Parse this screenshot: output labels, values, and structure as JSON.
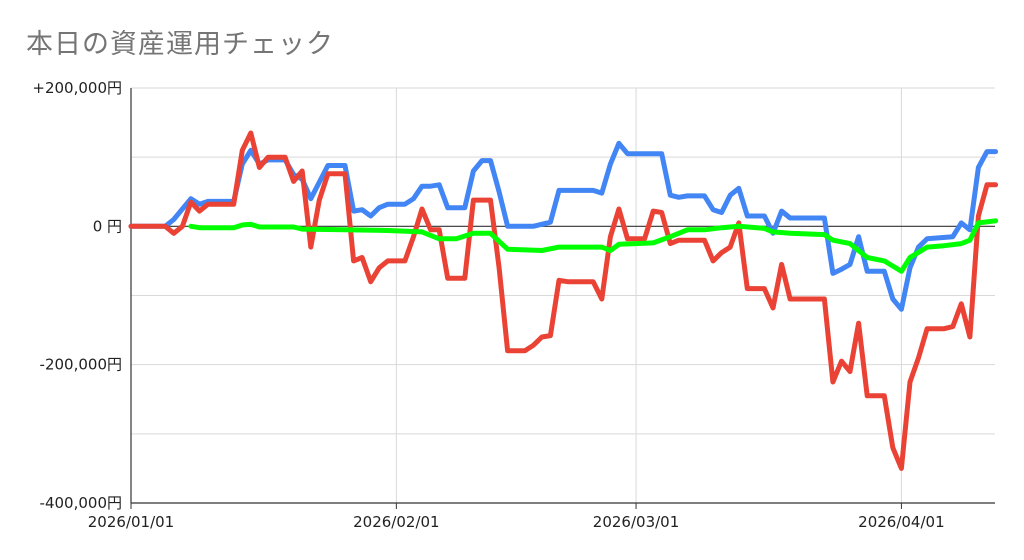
{
  "title": "本日の資産運用チェック",
  "chart_data": {
    "type": "line",
    "title": "本日の資産運用チェック",
    "xlabel": "",
    "ylabel": "",
    "x_ticks": [
      "2026/01/01",
      "2026/02/01",
      "2026/03/01",
      "2026/04/01"
    ],
    "y_ticks": [
      "+200,000円",
      "0 円",
      "-200,000円",
      "-400,000円"
    ],
    "y_tick_values": [
      200000,
      0,
      -200000,
      -400000
    ],
    "xlim": [
      "2026-01-01",
      "2026-04-11"
    ],
    "ylim": [
      -400000,
      200000
    ],
    "grid": true,
    "legend": "none",
    "series": [
      {
        "color": "#4285f4",
        "points": [
          [
            "2026-01-01",
            0
          ],
          [
            "2026-01-05",
            0
          ],
          [
            "2026-01-06",
            10000
          ],
          [
            "2026-01-08",
            40000
          ],
          [
            "2026-01-09",
            32000
          ],
          [
            "2026-01-10",
            36000
          ],
          [
            "2026-01-13",
            36000
          ],
          [
            "2026-01-14",
            90000
          ],
          [
            "2026-01-15",
            110000
          ],
          [
            "2026-01-16",
            90000
          ],
          [
            "2026-01-17",
            96000
          ],
          [
            "2026-01-19",
            96000
          ],
          [
            "2026-01-20",
            75000
          ],
          [
            "2026-01-21",
            68000
          ],
          [
            "2026-01-22",
            40000
          ],
          [
            "2026-01-24",
            88000
          ],
          [
            "2026-01-26",
            88000
          ],
          [
            "2026-01-27",
            22000
          ],
          [
            "2026-01-28",
            24000
          ],
          [
            "2026-01-29",
            15000
          ],
          [
            "2026-01-30",
            27000
          ],
          [
            "2026-01-31",
            32000
          ],
          [
            "2026-02-02",
            32000
          ],
          [
            "2026-02-03",
            40000
          ],
          [
            "2026-02-04",
            58000
          ],
          [
            "2026-02-05",
            58000
          ],
          [
            "2026-02-06",
            60000
          ],
          [
            "2026-02-07",
            27000
          ],
          [
            "2026-02-09",
            27000
          ],
          [
            "2026-02-10",
            80000
          ],
          [
            "2026-02-11",
            95000
          ],
          [
            "2026-02-12",
            95000
          ],
          [
            "2026-02-13",
            50000
          ],
          [
            "2026-02-14",
            0
          ],
          [
            "2026-02-17",
            0
          ],
          [
            "2026-02-19",
            6000
          ],
          [
            "2026-02-20",
            52000
          ],
          [
            "2026-02-24",
            52000
          ],
          [
            "2026-02-25",
            48000
          ],
          [
            "2026-02-26",
            90000
          ],
          [
            "2026-02-27",
            120000
          ],
          [
            "2026-02-28",
            105000
          ],
          [
            "2026-03-04",
            105000
          ],
          [
            "2026-03-05",
            45000
          ],
          [
            "2026-03-06",
            42000
          ],
          [
            "2026-03-07",
            44000
          ],
          [
            "2026-03-09",
            44000
          ],
          [
            "2026-03-10",
            24000
          ],
          [
            "2026-03-11",
            20000
          ],
          [
            "2026-03-12",
            45000
          ],
          [
            "2026-03-13",
            55000
          ],
          [
            "2026-03-14",
            15000
          ],
          [
            "2026-03-16",
            15000
          ],
          [
            "2026-03-17",
            -10000
          ],
          [
            "2026-03-18",
            22000
          ],
          [
            "2026-03-19",
            12000
          ],
          [
            "2026-03-23",
            12000
          ],
          [
            "2026-03-24",
            -68000
          ],
          [
            "2026-03-25",
            -62000
          ],
          [
            "2026-03-26",
            -55000
          ],
          [
            "2026-03-27",
            -15000
          ],
          [
            "2026-03-28",
            -65000
          ],
          [
            "2026-03-30",
            -65000
          ],
          [
            "2026-03-31",
            -105000
          ],
          [
            "2026-04-01",
            -120000
          ],
          [
            "2026-04-02",
            -60000
          ],
          [
            "2026-04-03",
            -30000
          ],
          [
            "2026-04-04",
            -18000
          ],
          [
            "2026-04-07",
            -15000
          ],
          [
            "2026-04-08",
            5000
          ],
          [
            "2026-04-09",
            -5000
          ],
          [
            "2026-04-10",
            85000
          ],
          [
            "2026-04-11",
            108000
          ],
          [
            "2026-04-12",
            108000
          ]
        ]
      },
      {
        "color": "#ea4335",
        "points": [
          [
            "2026-01-01",
            0
          ],
          [
            "2026-01-05",
            0
          ],
          [
            "2026-01-06",
            -10000
          ],
          [
            "2026-01-07",
            0
          ],
          [
            "2026-01-08",
            35000
          ],
          [
            "2026-01-09",
            22000
          ],
          [
            "2026-01-10",
            32000
          ],
          [
            "2026-01-13",
            32000
          ],
          [
            "2026-01-14",
            110000
          ],
          [
            "2026-01-15",
            135000
          ],
          [
            "2026-01-16",
            85000
          ],
          [
            "2026-01-17",
            100000
          ],
          [
            "2026-01-19",
            100000
          ],
          [
            "2026-01-20",
            65000
          ],
          [
            "2026-01-21",
            80000
          ],
          [
            "2026-01-22",
            -30000
          ],
          [
            "2026-01-23",
            38000
          ],
          [
            "2026-01-24",
            76000
          ],
          [
            "2026-01-26",
            76000
          ],
          [
            "2026-01-27",
            -50000
          ],
          [
            "2026-01-28",
            -45000
          ],
          [
            "2026-01-29",
            -80000
          ],
          [
            "2026-01-30",
            -60000
          ],
          [
            "2026-01-31",
            -50000
          ],
          [
            "2026-02-02",
            -50000
          ],
          [
            "2026-02-03",
            -15000
          ],
          [
            "2026-02-04",
            25000
          ],
          [
            "2026-02-05",
            -5000
          ],
          [
            "2026-02-06",
            -5000
          ],
          [
            "2026-02-07",
            -75000
          ],
          [
            "2026-02-09",
            -75000
          ],
          [
            "2026-02-10",
            38000
          ],
          [
            "2026-02-12",
            38000
          ],
          [
            "2026-02-13",
            -60000
          ],
          [
            "2026-02-14",
            -180000
          ],
          [
            "2026-02-16",
            -180000
          ],
          [
            "2026-02-17",
            -172000
          ],
          [
            "2026-02-18",
            -160000
          ],
          [
            "2026-02-19",
            -158000
          ],
          [
            "2026-02-20",
            -78000
          ],
          [
            "2026-02-21",
            -80000
          ],
          [
            "2026-02-24",
            -80000
          ],
          [
            "2026-02-25",
            -105000
          ],
          [
            "2026-02-26",
            -15000
          ],
          [
            "2026-02-27",
            25000
          ],
          [
            "2026-02-28",
            -18000
          ],
          [
            "2026-03-02",
            -18000
          ],
          [
            "2026-03-03",
            22000
          ],
          [
            "2026-03-04",
            20000
          ],
          [
            "2026-03-05",
            -25000
          ],
          [
            "2026-03-06",
            -20000
          ],
          [
            "2026-03-09",
            -20000
          ],
          [
            "2026-03-10",
            -50000
          ],
          [
            "2026-03-11",
            -38000
          ],
          [
            "2026-03-12",
            -30000
          ],
          [
            "2026-03-13",
            5000
          ],
          [
            "2026-03-14",
            -90000
          ],
          [
            "2026-03-16",
            -90000
          ],
          [
            "2026-03-17",
            -118000
          ],
          [
            "2026-03-18",
            -55000
          ],
          [
            "2026-03-19",
            -105000
          ],
          [
            "2026-03-23",
            -105000
          ],
          [
            "2026-03-24",
            -225000
          ],
          [
            "2026-03-25",
            -195000
          ],
          [
            "2026-03-26",
            -210000
          ],
          [
            "2026-03-27",
            -140000
          ],
          [
            "2026-03-28",
            -245000
          ],
          [
            "2026-03-30",
            -245000
          ],
          [
            "2026-03-31",
            -320000
          ],
          [
            "2026-04-01",
            -350000
          ],
          [
            "2026-04-02",
            -225000
          ],
          [
            "2026-04-03",
            -190000
          ],
          [
            "2026-04-04",
            -148000
          ],
          [
            "2026-04-06",
            -148000
          ],
          [
            "2026-04-07",
            -145000
          ],
          [
            "2026-04-08",
            -112000
          ],
          [
            "2026-04-09",
            -160000
          ],
          [
            "2026-04-10",
            15000
          ],
          [
            "2026-04-11",
            60000
          ],
          [
            "2026-04-12",
            60000
          ]
        ]
      },
      {
        "color": "#00ff00",
        "points": [
          [
            "2026-01-08",
            0
          ],
          [
            "2026-01-09",
            -2000
          ],
          [
            "2026-01-13",
            -2000
          ],
          [
            "2026-01-14",
            2000
          ],
          [
            "2026-01-15",
            3000
          ],
          [
            "2026-01-16",
            -1000
          ],
          [
            "2026-01-20",
            -1000
          ],
          [
            "2026-01-21",
            -4000
          ],
          [
            "2026-01-26",
            -5000
          ],
          [
            "2026-01-31",
            -6000
          ],
          [
            "2026-02-04",
            -8000
          ],
          [
            "2026-02-06",
            -18000
          ],
          [
            "2026-02-08",
            -18000
          ],
          [
            "2026-02-10",
            -10000
          ],
          [
            "2026-02-12",
            -10000
          ],
          [
            "2026-02-14",
            -33000
          ],
          [
            "2026-02-18",
            -35000
          ],
          [
            "2026-02-20",
            -30000
          ],
          [
            "2026-02-25",
            -30000
          ],
          [
            "2026-02-26",
            -35000
          ],
          [
            "2026-02-27",
            -26000
          ],
          [
            "2026-03-03",
            -24000
          ],
          [
            "2026-03-05",
            -15000
          ],
          [
            "2026-03-07",
            -5000
          ],
          [
            "2026-03-09",
            -5000
          ],
          [
            "2026-03-11",
            -2000
          ],
          [
            "2026-03-13",
            0
          ],
          [
            "2026-03-16",
            -3000
          ],
          [
            "2026-03-17",
            -8000
          ],
          [
            "2026-03-19",
            -10000
          ],
          [
            "2026-03-23",
            -12000
          ],
          [
            "2026-03-24",
            -20000
          ],
          [
            "2026-03-26",
            -25000
          ],
          [
            "2026-03-28",
            -45000
          ],
          [
            "2026-03-30",
            -50000
          ],
          [
            "2026-04-01",
            -65000
          ],
          [
            "2026-04-02",
            -45000
          ],
          [
            "2026-04-04",
            -30000
          ],
          [
            "2026-04-06",
            -28000
          ],
          [
            "2026-04-08",
            -25000
          ],
          [
            "2026-04-09",
            -20000
          ],
          [
            "2026-04-10",
            5000
          ],
          [
            "2026-04-12",
            8000
          ]
        ]
      }
    ]
  }
}
